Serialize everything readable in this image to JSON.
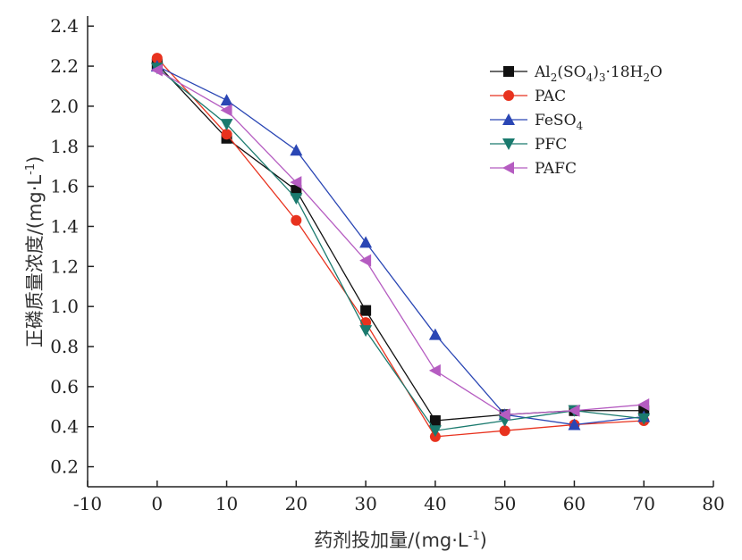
{
  "chart_data": {
    "type": "line",
    "title": "",
    "xlabel": "药剂投加量/(mg·L-1)",
    "ylabel": "正磷质量浓度/(mg·L-1)",
    "xlabel_parts": {
      "main": "药剂投加量/(mg·L",
      "sup": "-1",
      "close": ")"
    },
    "ylabel_parts": {
      "main": "正磷质量浓度/(mg·L",
      "sup": "-1",
      "close": ")"
    },
    "xlim": [
      -10,
      80
    ],
    "ylim": [
      0.1,
      2.45
    ],
    "x_ticks": [
      -10,
      0,
      10,
      20,
      30,
      40,
      50,
      60,
      70,
      80
    ],
    "y_ticks": [
      0.2,
      0.4,
      0.6,
      0.8,
      1.0,
      1.2,
      1.4,
      1.6,
      1.8,
      2.0,
      2.2,
      2.4
    ],
    "x_tick_labels": [
      "-10",
      "0",
      "10",
      "20",
      "30",
      "40",
      "50",
      "60",
      "70",
      "80"
    ],
    "y_tick_labels": [
      "0.2",
      "0.4",
      "0.6",
      "0.8",
      "1.0",
      "1.2",
      "1.4",
      "1.6",
      "1.8",
      "2.0",
      "2.2",
      "2.4"
    ],
    "grid": false,
    "legend_position": "top-right",
    "x": [
      0,
      10,
      20,
      30,
      40,
      50,
      60,
      70
    ],
    "series": [
      {
        "name": "Al2(SO4)3·18H2O",
        "name_parts": [
          [
            "Al",
            ""
          ],
          [
            "2",
            "sub"
          ],
          [
            "(SO",
            ""
          ],
          [
            "4",
            "sub"
          ],
          [
            ")",
            ""
          ],
          [
            "3",
            "sub"
          ],
          [
            "·18H",
            ""
          ],
          [
            "2",
            "sub"
          ],
          [
            "O",
            ""
          ]
        ],
        "color": "#111111",
        "marker": "square",
        "values": [
          2.21,
          1.84,
          1.58,
          0.98,
          0.43,
          0.46,
          0.48,
          0.48
        ]
      },
      {
        "name": "PAC",
        "name_parts": [
          [
            "PAC",
            ""
          ]
        ],
        "color": "#e8321e",
        "marker": "circle",
        "values": [
          2.24,
          1.86,
          1.43,
          0.92,
          0.35,
          0.38,
          0.41,
          0.43
        ]
      },
      {
        "name": "FeSO4",
        "name_parts": [
          [
            "FeSO",
            ""
          ],
          [
            "4",
            "sub"
          ]
        ],
        "color": "#2a46b4",
        "marker": "triangle-up",
        "values": [
          2.2,
          2.03,
          1.78,
          1.32,
          0.86,
          0.46,
          0.41,
          0.45
        ]
      },
      {
        "name": "PFC",
        "name_parts": [
          [
            "PFC",
            ""
          ]
        ],
        "color": "#1a7a6e",
        "marker": "triangle-down",
        "values": [
          2.19,
          1.91,
          1.54,
          0.88,
          0.38,
          0.43,
          0.48,
          0.44
        ]
      },
      {
        "name": "PAFC",
        "name_parts": [
          [
            "PAFC",
            ""
          ]
        ],
        "color": "#b55cc1",
        "marker": "triangle-left",
        "values": [
          2.18,
          1.98,
          1.62,
          1.23,
          0.68,
          0.46,
          0.48,
          0.51
        ]
      }
    ]
  }
}
